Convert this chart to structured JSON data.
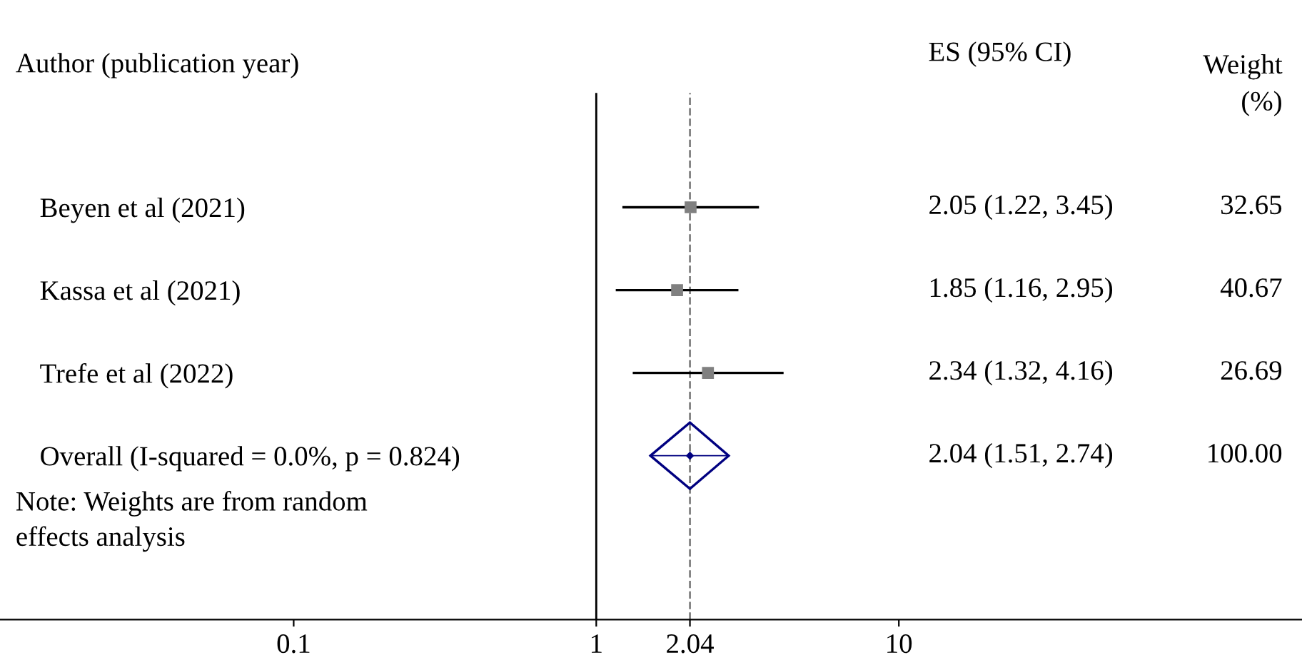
{
  "chart_data": {
    "type": "scatter",
    "orientation": "horizontal",
    "log": "x",
    "categories": [
      "Beyen et al (2021)",
      "Kassa et al (2021)",
      "Trefe et al (2022)",
      "Overall (I-squared = 0.0%, p = 0.824)"
    ],
    "series": [
      {
        "type": "scatter",
        "marker": "square",
        "color": "#808080",
        "values": [
          2.05,
          1.85,
          2.34,
          null
        ],
        "errors": [
          [
            1.22,
            3.45
          ],
          [
            1.16,
            2.95
          ],
          [
            1.32,
            4.16
          ],
          null
        ]
      },
      {
        "type": "scatter",
        "marker": "diamond",
        "color": "#000080",
        "values": [
          null,
          null,
          null,
          2.04
        ],
        "errors": [
          null,
          null,
          null,
          [
            1.51,
            2.74
          ]
        ]
      }
    ],
    "xlim": [
      0.0107,
      215
    ],
    "xticks": [
      0.1,
      1,
      2.04,
      10
    ],
    "ref_lines": [
      {
        "axis": "x",
        "value": 1,
        "line_style": "solid",
        "color": "#000000"
      },
      {
        "axis": "x",
        "value": 2.04,
        "line_style": "dashed",
        "color": "#808080"
      }
    ],
    "annotations": [
      "Author (publication year)",
      "ES (95% CI)",
      "Weight\n(%)",
      "2.05 (1.22, 3.45)",
      "1.85 (1.16, 2.95)",
      "2.34 (1.32, 4.16)",
      "2.04 (1.51, 2.74)",
      "32.65",
      "40.67",
      "26.69",
      "100.00",
      "Note: Weights are from random\neffects analysis"
    ],
    "grid": false,
    "legend": false
  }
}
